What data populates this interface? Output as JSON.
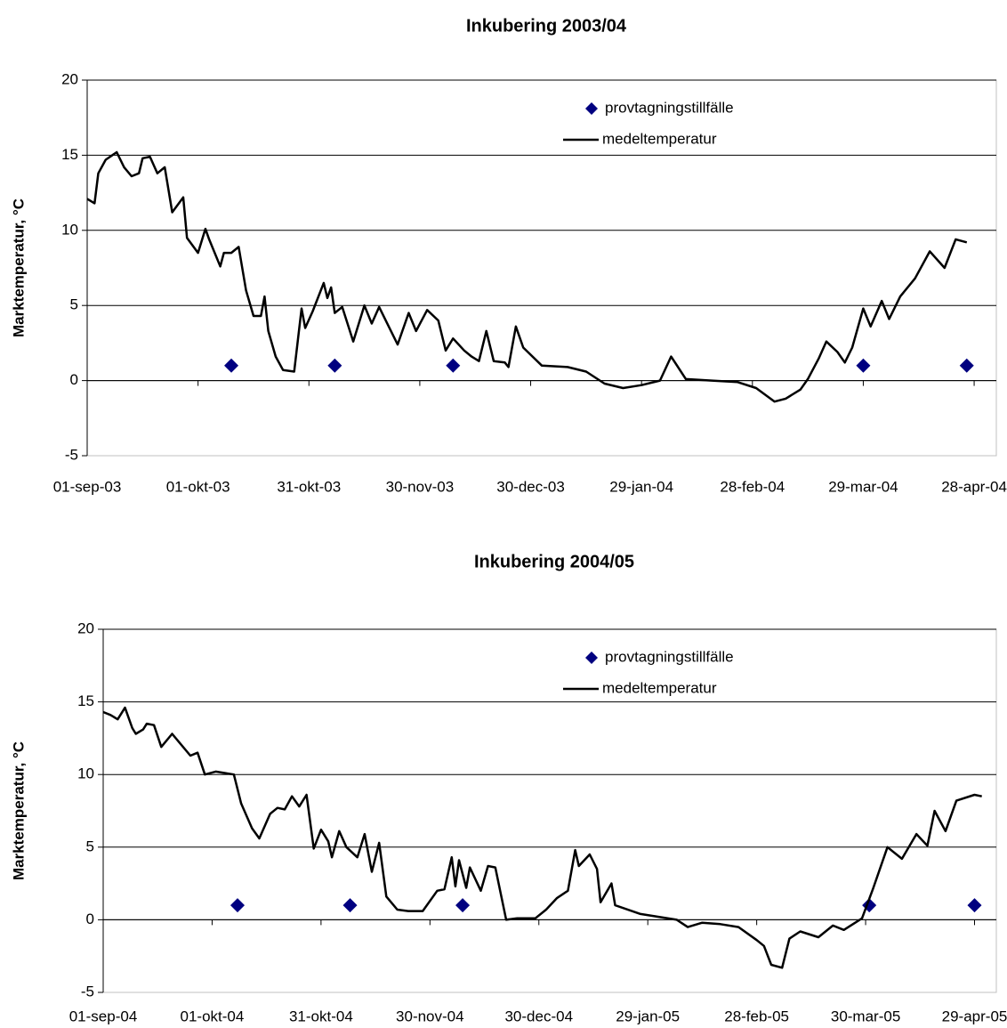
{
  "chart_data": [
    {
      "type": "line",
      "title": "Inkubering 2003/04",
      "y_label": "Marktemperatur, °C",
      "xlim": [
        "2003-09-01",
        "2004-05-04"
      ],
      "xticks": [
        {
          "value": "2003-09-01",
          "label": "01-sep-03"
        },
        {
          "value": "2003-10-01",
          "label": "01-okt-03"
        },
        {
          "value": "2003-10-31",
          "label": "31-okt-03"
        },
        {
          "value": "2003-11-30",
          "label": "30-nov-03"
        },
        {
          "value": "2003-12-30",
          "label": "30-dec-03"
        },
        {
          "value": "2004-01-29",
          "label": "29-jan-04"
        },
        {
          "value": "2004-02-28",
          "label": "28-feb-04"
        },
        {
          "value": "2004-03-29",
          "label": "29-mar-04"
        },
        {
          "value": "2004-04-28",
          "label": "28-apr-04"
        }
      ],
      "ylim": [
        -5,
        20
      ],
      "yticks": [
        -5,
        0,
        5,
        10,
        15,
        20
      ],
      "grid": true,
      "legend": "top-right",
      "series": [
        {
          "name": "provtagningstillfälle",
          "type": "scatter",
          "marker": "diamond",
          "color": "#000080",
          "x": [
            "2003-10-10",
            "2003-11-07",
            "2003-12-09",
            "2004-03-29",
            "2004-04-26"
          ],
          "values": [
            1,
            1,
            1,
            1,
            1
          ]
        },
        {
          "name": "medeltemperatur",
          "type": "line",
          "color": "#000000",
          "x": [
            "2003-09-01",
            "2003-09-03",
            "2003-09-04",
            "2003-09-06",
            "2003-09-09",
            "2003-09-11",
            "2003-09-13",
            "2003-09-15",
            "2003-09-16",
            "2003-09-18",
            "2003-09-20",
            "2003-09-22",
            "2003-09-24",
            "2003-09-27",
            "2003-09-28",
            "2003-10-01",
            "2003-10-03",
            "2003-10-04",
            "2003-10-07",
            "2003-10-08",
            "2003-10-10",
            "2003-10-12",
            "2003-10-14",
            "2003-10-16",
            "2003-10-18",
            "2003-10-19",
            "2003-10-20",
            "2003-10-22",
            "2003-10-24",
            "2003-10-27",
            "2003-10-29",
            "2003-10-30",
            "2003-11-01",
            "2003-11-04",
            "2003-11-05",
            "2003-11-06",
            "2003-11-07",
            "2003-11-09",
            "2003-11-12",
            "2003-11-15",
            "2003-11-17",
            "2003-11-19",
            "2003-11-21",
            "2003-11-24",
            "2003-11-27",
            "2003-11-29",
            "2003-12-02",
            "2003-12-05",
            "2003-12-07",
            "2003-12-09",
            "2003-12-12",
            "2003-12-14",
            "2003-12-16",
            "2003-12-18",
            "2003-12-20",
            "2003-12-23",
            "2003-12-24",
            "2003-12-26",
            "2003-12-28",
            "2004-01-02",
            "2004-01-09",
            "2004-01-14",
            "2004-01-19",
            "2004-01-24",
            "2004-01-29",
            "2004-02-03",
            "2004-02-06",
            "2004-02-10",
            "2004-02-17",
            "2004-02-24",
            "2004-02-29",
            "2004-03-05",
            "2004-03-08",
            "2004-03-12",
            "2004-03-14",
            "2004-03-17",
            "2004-03-19",
            "2004-03-22",
            "2004-03-24",
            "2004-03-26",
            "2004-03-29",
            "2004-03-31",
            "2004-04-03",
            "2004-04-05",
            "2004-04-08",
            "2004-04-12",
            "2004-04-16",
            "2004-04-20",
            "2004-04-23",
            "2004-04-26"
          ],
          "values": [
            12.1,
            11.8,
            13.8,
            14.7,
            15.2,
            14.2,
            13.6,
            13.8,
            14.8,
            14.9,
            13.8,
            14.2,
            11.2,
            12.2,
            9.5,
            8.5,
            10.1,
            9.4,
            7.6,
            8.5,
            8.5,
            8.9,
            6.0,
            4.3,
            4.3,
            5.6,
            3.3,
            1.6,
            0.7,
            0.6,
            4.8,
            3.5,
            4.6,
            6.5,
            5.5,
            6.2,
            4.5,
            4.9,
            2.6,
            5.0,
            3.8,
            4.9,
            3.9,
            2.4,
            4.5,
            3.3,
            4.7,
            4.0,
            2.0,
            2.8,
            2.0,
            1.6,
            1.3,
            3.3,
            1.3,
            1.2,
            0.9,
            3.6,
            2.2,
            1.0,
            0.9,
            0.6,
            -0.2,
            -0.5,
            -0.3,
            0.0,
            1.6,
            0.1,
            0.0,
            -0.1,
            -0.5,
            -1.4,
            -1.2,
            -0.6,
            0.1,
            1.5,
            2.6,
            1.9,
            1.2,
            2.2,
            4.8,
            3.6,
            5.3,
            4.1,
            5.6,
            6.8,
            8.6,
            7.5,
            9.4,
            9.2
          ]
        }
      ]
    },
    {
      "type": "line",
      "title": "Inkubering 2004/05",
      "y_label": "Marktemperatur, °C",
      "xlim": [
        "2004-09-01",
        "2005-05-05"
      ],
      "xticks": [
        {
          "value": "2004-09-01",
          "label": "01-sep-04"
        },
        {
          "value": "2004-10-01",
          "label": "01-okt-04"
        },
        {
          "value": "2004-10-31",
          "label": "31-okt-04"
        },
        {
          "value": "2004-11-30",
          "label": "30-nov-04"
        },
        {
          "value": "2004-12-30",
          "label": "30-dec-04"
        },
        {
          "value": "2005-01-29",
          "label": "29-jan-05"
        },
        {
          "value": "2005-02-28",
          "label": "28-feb-05"
        },
        {
          "value": "2005-03-30",
          "label": "30-mar-05"
        },
        {
          "value": "2005-04-29",
          "label": "29-apr-05"
        }
      ],
      "ylim": [
        -5,
        20
      ],
      "yticks": [
        -5,
        0,
        5,
        10,
        15,
        20
      ],
      "grid": true,
      "legend": "top-right",
      "series": [
        {
          "name": "provtagningstillfälle",
          "type": "scatter",
          "marker": "diamond",
          "color": "#000080",
          "x": [
            "2004-10-08",
            "2004-11-08",
            "2004-12-09",
            "2005-03-31",
            "2005-04-29"
          ],
          "values": [
            1,
            1,
            1,
            1,
            1
          ]
        },
        {
          "name": "medeltemperatur",
          "type": "line",
          "color": "#000000",
          "x": [
            "2004-09-01",
            "2004-09-03",
            "2004-09-05",
            "2004-09-07",
            "2004-09-09",
            "2004-09-10",
            "2004-09-12",
            "2004-09-13",
            "2004-09-15",
            "2004-09-17",
            "2004-09-20",
            "2004-09-22",
            "2004-09-25",
            "2004-09-27",
            "2004-09-29",
            "2004-10-02",
            "2004-10-07",
            "2004-10-09",
            "2004-10-12",
            "2004-10-14",
            "2004-10-17",
            "2004-10-19",
            "2004-10-21",
            "2004-10-23",
            "2004-10-25",
            "2004-10-27",
            "2004-10-29",
            "2004-10-31",
            "2004-11-02",
            "2004-11-03",
            "2004-11-05",
            "2004-11-07",
            "2004-11-10",
            "2004-11-12",
            "2004-11-14",
            "2004-11-16",
            "2004-11-18",
            "2004-11-21",
            "2004-11-24",
            "2004-11-28",
            "2004-12-02",
            "2004-12-04",
            "2004-12-06",
            "2004-12-07",
            "2004-12-08",
            "2004-12-10",
            "2004-12-11",
            "2004-12-14",
            "2004-12-16",
            "2004-12-18",
            "2004-12-21",
            "2004-12-24",
            "2004-12-29",
            "2005-01-01",
            "2005-01-04",
            "2005-01-07",
            "2005-01-09",
            "2005-01-10",
            "2005-01-13",
            "2005-01-15",
            "2005-01-16",
            "2005-01-19",
            "2005-01-20",
            "2005-01-27",
            "2005-02-06",
            "2005-02-09",
            "2005-02-13",
            "2005-02-18",
            "2005-02-23",
            "2005-02-28",
            "2005-03-02",
            "2005-03-04",
            "2005-03-07",
            "2005-03-09",
            "2005-03-12",
            "2005-03-17",
            "2005-03-21",
            "2005-03-24",
            "2005-03-29",
            "2005-04-01",
            "2005-04-05",
            "2005-04-09",
            "2005-04-13",
            "2005-04-16",
            "2005-04-18",
            "2005-04-21",
            "2005-04-24",
            "2005-04-29",
            "2005-05-01"
          ],
          "values": [
            14.3,
            14.1,
            13.8,
            14.6,
            13.2,
            12.8,
            13.1,
            13.5,
            13.4,
            11.9,
            12.8,
            12.2,
            11.3,
            11.5,
            10.0,
            10.2,
            10.0,
            8.0,
            6.3,
            5.6,
            7.3,
            7.7,
            7.6,
            8.5,
            7.8,
            8.6,
            4.9,
            6.2,
            5.4,
            4.3,
            6.1,
            5.0,
            4.3,
            5.9,
            3.3,
            5.3,
            1.6,
            0.7,
            0.6,
            0.6,
            2.0,
            2.1,
            4.3,
            2.3,
            4.1,
            2.2,
            3.6,
            2.0,
            3.7,
            3.6,
            0.0,
            0.1,
            0.1,
            0.7,
            1.5,
            2.0,
            4.8,
            3.7,
            4.5,
            3.5,
            1.2,
            2.5,
            1.0,
            0.4,
            0.0,
            -0.5,
            -0.2,
            -0.3,
            -0.5,
            -1.4,
            -1.8,
            -3.1,
            -3.3,
            -1.3,
            -0.8,
            -1.2,
            -0.4,
            -0.7,
            0.1,
            2.1,
            5.0,
            4.2,
            5.9,
            5.1,
            7.5,
            6.1,
            8.2,
            8.6,
            8.5
          ]
        }
      ]
    }
  ]
}
